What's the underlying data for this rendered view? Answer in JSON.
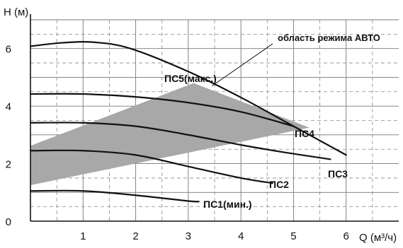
{
  "chart_data": {
    "type": "line",
    "ylabel": "H (м)",
    "xlabel": "Q (м³/ч)",
    "xlim": [
      0,
      7
    ],
    "ylim": [
      0,
      7
    ],
    "x_ticks": [
      "1",
      "2",
      "3",
      "4",
      "5",
      "6"
    ],
    "y_ticks": [
      "0",
      "2",
      "4",
      "6"
    ],
    "grid": true,
    "series": [
      {
        "name": "ПС5(макс.)",
        "points": [
          [
            0,
            6.08
          ],
          [
            0.6,
            6.2
          ],
          [
            1.2,
            6.22
          ],
          [
            1.9,
            6.0
          ],
          [
            3.0,
            5.2
          ],
          [
            4.0,
            4.3
          ],
          [
            5.0,
            3.3
          ],
          [
            6.0,
            2.3
          ]
        ]
      },
      {
        "name": "ПС4",
        "points": [
          [
            0,
            4.42
          ],
          [
            1,
            4.42
          ],
          [
            2,
            4.32
          ],
          [
            3,
            4.12
          ],
          [
            4,
            3.8
          ],
          [
            5,
            3.3
          ]
        ]
      },
      {
        "name": "ПС3",
        "points": [
          [
            0,
            3.42
          ],
          [
            1,
            3.42
          ],
          [
            2,
            3.3
          ],
          [
            3,
            3.0
          ],
          [
            4,
            2.65
          ],
          [
            4.8,
            2.4
          ],
          [
            5.7,
            2.15
          ]
        ]
      },
      {
        "name": "ПС2",
        "points": [
          [
            0,
            2.45
          ],
          [
            1,
            2.45
          ],
          [
            2,
            2.3
          ],
          [
            3,
            1.9
          ],
          [
            4.0,
            1.5
          ],
          [
            4.6,
            1.32
          ]
        ]
      },
      {
        "name": "ПС1(мин.)",
        "points": [
          [
            0,
            1.05
          ],
          [
            1,
            1.05
          ],
          [
            2,
            0.9
          ],
          [
            3,
            0.7
          ],
          [
            3.2,
            0.68
          ]
        ]
      }
    ],
    "auto_region": {
      "label": "область режима АВТО",
      "polygon": [
        [
          0,
          2.62
        ],
        [
          3.1,
          4.8
        ],
        [
          5.3,
          3.25
        ],
        [
          0,
          1.25
        ]
      ]
    }
  }
}
